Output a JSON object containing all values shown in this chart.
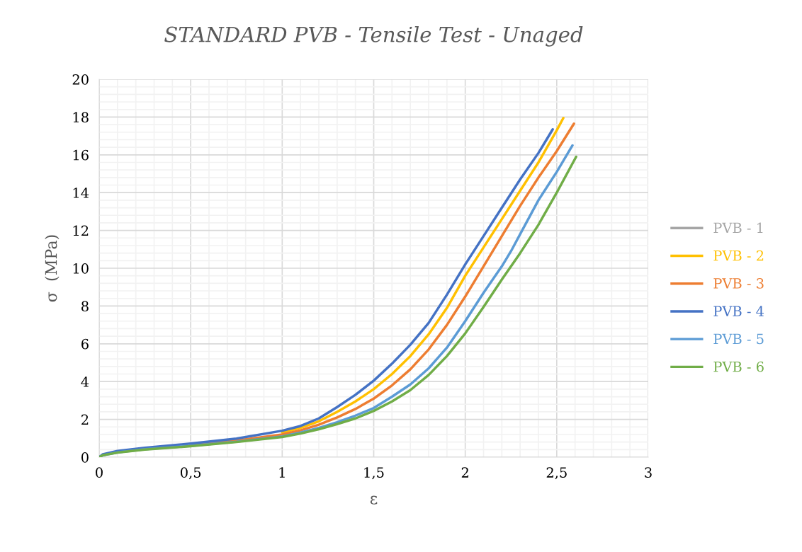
{
  "chart_data": {
    "type": "line",
    "title": "STANDARD PVB - Tensile Test - Unaged",
    "xlabel": "ε",
    "ylabel": "σ  (MPa)",
    "xlim": [
      0,
      3
    ],
    "ylim": [
      0,
      20
    ],
    "xticks": [
      0,
      {
        "value": 0.5,
        "label": "0,5"
      },
      1,
      {
        "value": 1.5,
        "label": "1,5"
      },
      2,
      {
        "value": 2.5,
        "label": "2,5"
      },
      3
    ],
    "yticks": [
      0,
      2,
      4,
      6,
      8,
      10,
      12,
      14,
      16,
      18,
      20
    ],
    "grid": true,
    "legend": "right",
    "marker": "none",
    "line_style": "solid",
    "series": [
      {
        "name": "PVB - 1",
        "color": "#a5a5a5"
      },
      {
        "name": "PVB - 2",
        "color": "#ffc000",
        "x": [
          1.0,
          1.1,
          1.2,
          1.3,
          1.4,
          1.5,
          1.6,
          1.7,
          1.8,
          1.9,
          2.0,
          2.1,
          2.2,
          2.3,
          2.4,
          2.5,
          2.536
        ],
        "values": [
          1.3,
          1.55,
          1.9,
          2.4,
          2.95,
          3.6,
          4.4,
          5.35,
          6.5,
          7.9,
          9.6,
          11.1,
          12.6,
          14.1,
          15.6,
          17.3,
          17.95
        ]
      },
      {
        "name": "PVB - 3",
        "color": "#ed7d31",
        "x": [
          0.5,
          0.75,
          1.0,
          1.1,
          1.2,
          1.3,
          1.4,
          1.5,
          1.6,
          1.7,
          1.8,
          1.9,
          2.0,
          2.1,
          2.2,
          2.3,
          2.4,
          2.5,
          2.594
        ],
        "values": [
          0.65,
          0.88,
          1.2,
          1.42,
          1.72,
          2.1,
          2.55,
          3.1,
          3.8,
          4.65,
          5.7,
          7.0,
          8.5,
          10.1,
          11.7,
          13.3,
          14.8,
          16.2,
          17.65
        ]
      },
      {
        "name": "PVB - 4",
        "color": "#4472c4",
        "x": [
          0,
          0.02,
          0.1,
          0.25,
          0.5,
          0.75,
          1.0,
          1.1,
          1.2,
          1.3,
          1.4,
          1.5,
          1.6,
          1.7,
          1.8,
          1.9,
          2.0,
          2.1,
          2.2,
          2.3,
          2.4,
          2.478
        ],
        "values": [
          0,
          0.15,
          0.33,
          0.5,
          0.72,
          0.98,
          1.4,
          1.65,
          2.05,
          2.65,
          3.3,
          4.05,
          4.95,
          5.95,
          7.1,
          8.6,
          10.2,
          11.7,
          13.2,
          14.7,
          16.1,
          17.35
        ]
      },
      {
        "name": "PVB - 5",
        "color": "#5b9bd5",
        "x": [
          0,
          0.02,
          0.1,
          0.25,
          0.5,
          0.75,
          1.0,
          1.1,
          1.2,
          1.3,
          1.4,
          1.5,
          1.6,
          1.7,
          1.8,
          1.9,
          2.0,
          2.1,
          2.2,
          2.25,
          2.3,
          2.4,
          2.5,
          2.586
        ],
        "values": [
          0,
          0.1,
          0.25,
          0.42,
          0.6,
          0.82,
          1.1,
          1.3,
          1.55,
          1.85,
          2.2,
          2.6,
          3.2,
          3.85,
          4.7,
          5.8,
          7.2,
          8.7,
          10.1,
          10.9,
          11.8,
          13.6,
          15.1,
          16.5
        ]
      },
      {
        "name": "PVB - 6",
        "color": "#70ad47",
        "x": [
          0,
          0.02,
          0.1,
          0.25,
          0.5,
          0.75,
          1.0,
          1.1,
          1.2,
          1.3,
          1.4,
          1.5,
          1.6,
          1.7,
          1.8,
          1.9,
          2.0,
          2.1,
          2.2,
          2.3,
          2.4,
          2.5,
          2.606
        ],
        "values": [
          0,
          0.1,
          0.24,
          0.4,
          0.58,
          0.8,
          1.07,
          1.25,
          1.48,
          1.75,
          2.05,
          2.45,
          2.95,
          3.55,
          4.35,
          5.35,
          6.55,
          7.95,
          9.4,
          10.8,
          12.3,
          14.0,
          15.9
        ]
      }
    ]
  }
}
